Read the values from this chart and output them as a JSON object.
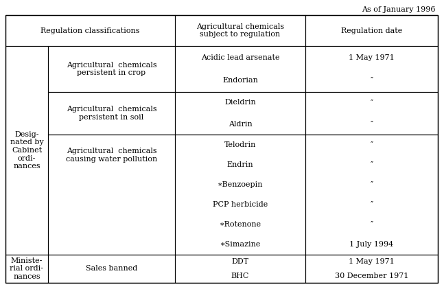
{
  "title": "As of January 1996",
  "col_header_1": "Regulation classifications",
  "col_header_2": "Agricultural chemicals\nsubject to regulation",
  "col_header_3": "Regulation date",
  "col1_main": "Desig-\nnated by\nCabinet\nordi-\nnances",
  "col1_last": "Ministe-\nrial ordi-\nnances",
  "row1_col2": "Agricultural  chemicals\npersistent in crop",
  "row2_col2": "Agricultural  chemicals\npersistent in soil",
  "row3_col2": "Agricultural  chemicals\ncausing water pollution",
  "row4_col2": "Sales banned",
  "row1_col3": [
    "Acidic lead arsenate",
    "Endorian"
  ],
  "row1_col4": [
    "1 May 1971",
    "″"
  ],
  "row2_col3": [
    "Dieldrin",
    "Aldrin"
  ],
  "row2_col4": [
    "″",
    "″"
  ],
  "row3_col3": [
    "Telodrin",
    "Endrin",
    "∗Benzoepin",
    "PCP herbicide",
    "∗Rotenone",
    "∗Simazine"
  ],
  "row3_col4": [
    "″",
    "″",
    "″",
    "″",
    "″",
    "1 July 1994"
  ],
  "row4_col3": [
    "DDT",
    "BHC"
  ],
  "row4_col4": [
    "1 May 1971",
    "30 December 1971"
  ],
  "bg_color": "#ffffff",
  "line_color": "#000000",
  "text_color": "#000000",
  "font_size": 8.0
}
